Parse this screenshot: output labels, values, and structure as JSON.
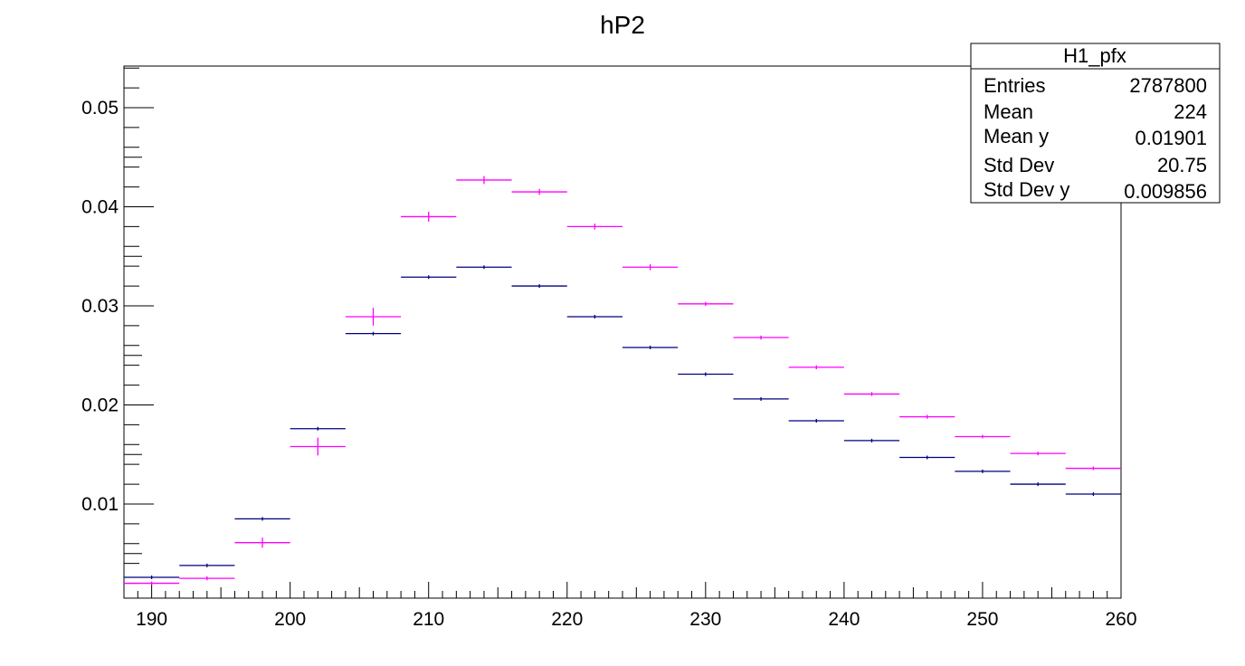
{
  "chart_data": {
    "type": "scatter",
    "title": "hP2",
    "xlabel": "",
    "ylabel": "",
    "xlim": [
      188,
      260
    ],
    "ylim": [
      0.0005,
      0.0542
    ],
    "grid": false,
    "x_ticks": [
      "190",
      "200",
      "210",
      "220",
      "230",
      "240",
      "250",
      "260"
    ],
    "y_ticks": [
      "0.01",
      "0.02",
      "0.03",
      "0.04",
      "0.05"
    ],
    "bin_width": 4,
    "x": [
      190,
      194,
      198,
      202,
      206,
      210,
      214,
      218,
      222,
      226,
      230,
      234,
      238,
      242,
      246,
      250,
      254,
      258
    ],
    "series": [
      {
        "color": "#000080",
        "values": [
          0.0026,
          0.0038,
          0.0085,
          0.0176,
          0.0272,
          0.0329,
          0.0339,
          0.032,
          0.0289,
          0.0258,
          0.0231,
          0.0206,
          0.0184,
          0.0164,
          0.0147,
          0.0133,
          0.012,
          0.011
        ],
        "errors": [
          5e-05,
          5e-05,
          5e-05,
          5e-05,
          5e-05,
          5e-05,
          5e-05,
          5e-05,
          5e-05,
          5e-05,
          5e-05,
          5e-05,
          5e-05,
          5e-05,
          5e-05,
          5e-05,
          5e-05,
          5e-05
        ]
      },
      {
        "color": "#ff00ff",
        "values": [
          0.002,
          0.0025,
          0.0061,
          0.0158,
          0.0289,
          0.039,
          0.0427,
          0.0415,
          0.038,
          0.0339,
          0.0302,
          0.0268,
          0.0238,
          0.0211,
          0.0188,
          0.0168,
          0.0151,
          0.0136
        ],
        "errors": [
          0.0001,
          0.0002,
          0.0005,
          0.0009,
          0.0009,
          0.0005,
          0.0004,
          0.0003,
          0.0003,
          0.0003,
          0.0002,
          0.0002,
          0.0002,
          0.0002,
          0.0002,
          0.0001,
          0.0001,
          0.0001
        ]
      }
    ]
  },
  "stats_box": {
    "name": "H1_pfx",
    "rows": [
      {
        "label": "Entries",
        "value": "2787800"
      },
      {
        "label": "Mean",
        "value": "224"
      },
      {
        "label": "Mean y",
        "value": "0.01901"
      },
      {
        "label": "Std Dev",
        "value": "20.75"
      },
      {
        "label": "Std Dev y",
        "value": "0.009856"
      }
    ]
  }
}
